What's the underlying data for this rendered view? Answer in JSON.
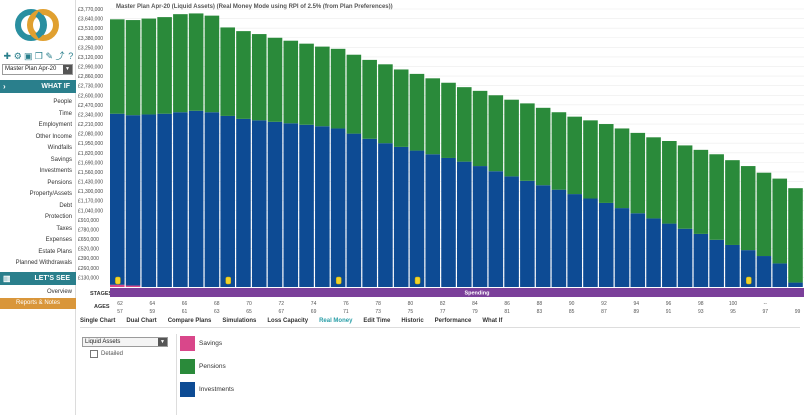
{
  "sidebar": {
    "plan_select": "Master Plan Apr-20",
    "whatif_header": "WHAT IF",
    "whatif_items": [
      "People",
      "Time",
      "Employment",
      "Other Income",
      "Windfalls",
      "Savings",
      "Investments",
      "Pensions",
      "Property/Assets",
      "Debt",
      "Protection",
      "Taxes",
      "Expenses",
      "Estate Plans",
      "Planned Withdrawals"
    ],
    "letssee_header": "LET'S SEE",
    "overview": "Overview",
    "reports": "Reports & Notes",
    "toolbar_icons": [
      "plus-icon",
      "gear-icon",
      "save-icon",
      "copy-icon",
      "edit-icon",
      "share-icon",
      "help-icon"
    ]
  },
  "chart_data": {
    "type": "bar",
    "title": "Master Plan Apr-20  (Liquid Assets) (Real Money Mode using RPI of 2.5% (from Plan Preferences))",
    "y_ticks": [
      "£3,770,000",
      "£3,640,000",
      "£3,510,000",
      "£3,380,000",
      "£3,250,000",
      "£3,120,000",
      "£2,990,000",
      "£2,860,000",
      "£2,730,000",
      "£2,600,000",
      "£2,470,000",
      "£2,340,000",
      "£2,210,000",
      "£2,080,000",
      "£1,950,000",
      "£1,820,000",
      "£1,690,000",
      "£1,560,000",
      "£1,430,000",
      "£1,300,000",
      "£1,170,000",
      "£1,040,000",
      "£910,000",
      "£780,000",
      "£650,000",
      "£520,000",
      "£390,000",
      "£260,000",
      "£130,000"
    ],
    "ylim": [
      0,
      3770000
    ],
    "series": [
      {
        "name": "Savings",
        "color": "#d9478a",
        "values": [
          30000,
          20000,
          0,
          0,
          0,
          0,
          0,
          0,
          0,
          0,
          0,
          0,
          0,
          0,
          0,
          0,
          0,
          0,
          0,
          0,
          0,
          0,
          0,
          0,
          0,
          0,
          0,
          0,
          0,
          0,
          0,
          0,
          0,
          0,
          0,
          0,
          0,
          0,
          0,
          0,
          0,
          0,
          0,
          0
        ]
      },
      {
        "name": "Investments",
        "color": "#0d4b94",
        "values": [
          2320000,
          2310000,
          2340000,
          2350000,
          2370000,
          2390000,
          2370000,
          2320000,
          2280000,
          2260000,
          2240000,
          2220000,
          2200000,
          2180000,
          2150000,
          2080000,
          2010000,
          1950000,
          1900000,
          1850000,
          1800000,
          1750000,
          1700000,
          1640000,
          1570000,
          1500000,
          1440000,
          1380000,
          1320000,
          1260000,
          1200000,
          1140000,
          1070000,
          1000000,
          930000,
          860000,
          790000,
          720000,
          640000,
          570000,
          500000,
          420000,
          320000,
          60000
        ]
      },
      {
        "name": "Pensions",
        "color": "#2a8a3a",
        "values": [
          1280000,
          1290000,
          1300000,
          1310000,
          1330000,
          1320000,
          1310000,
          1200000,
          1190000,
          1170000,
          1140000,
          1120000,
          1100000,
          1080000,
          1080000,
          1070000,
          1070000,
          1070000,
          1050000,
          1040000,
          1030000,
          1020000,
          1010000,
          1020000,
          1030000,
          1040000,
          1050000,
          1050000,
          1050000,
          1050000,
          1060000,
          1070000,
          1080000,
          1090000,
          1100000,
          1120000,
          1130000,
          1140000,
          1160000,
          1150000,
          1140000,
          1130000,
          1150000,
          1280000
        ]
      }
    ],
    "stage_label": "STAGES",
    "spending_label": "Spending",
    "ages_label": "AGES",
    "ages_row1": [
      "62",
      "64",
      "66",
      "68",
      "70",
      "72",
      "74",
      "76",
      "78",
      "80",
      "82",
      "84",
      "86",
      "88",
      "90",
      "92",
      "94",
      "96",
      "98",
      "100",
      "--"
    ],
    "ages_row2": [
      "57",
      "59",
      "61",
      "63",
      "65",
      "67",
      "69",
      "71",
      "73",
      "75",
      "77",
      "79",
      "81",
      "83",
      "85",
      "87",
      "89",
      "91",
      "93",
      "95",
      "97",
      "99"
    ],
    "event_marker_indices": [
      0,
      7,
      14,
      19,
      40
    ]
  },
  "tabs": [
    "Single Chart",
    "Dual Chart",
    "Compare Plans",
    "Simulations",
    "Loss Capacity",
    "Real Money",
    "Edit Time",
    "Historic",
    "Performance",
    "What If"
  ],
  "active_tab": "Real Money",
  "view_select": "Liquid Assets",
  "detailed_label": "Detailed",
  "legend": [
    {
      "name": "Savings",
      "color": "#d9478a"
    },
    {
      "name": "Pensions",
      "color": "#2a8a3a"
    },
    {
      "name": "Investments",
      "color": "#0d4b94"
    }
  ]
}
